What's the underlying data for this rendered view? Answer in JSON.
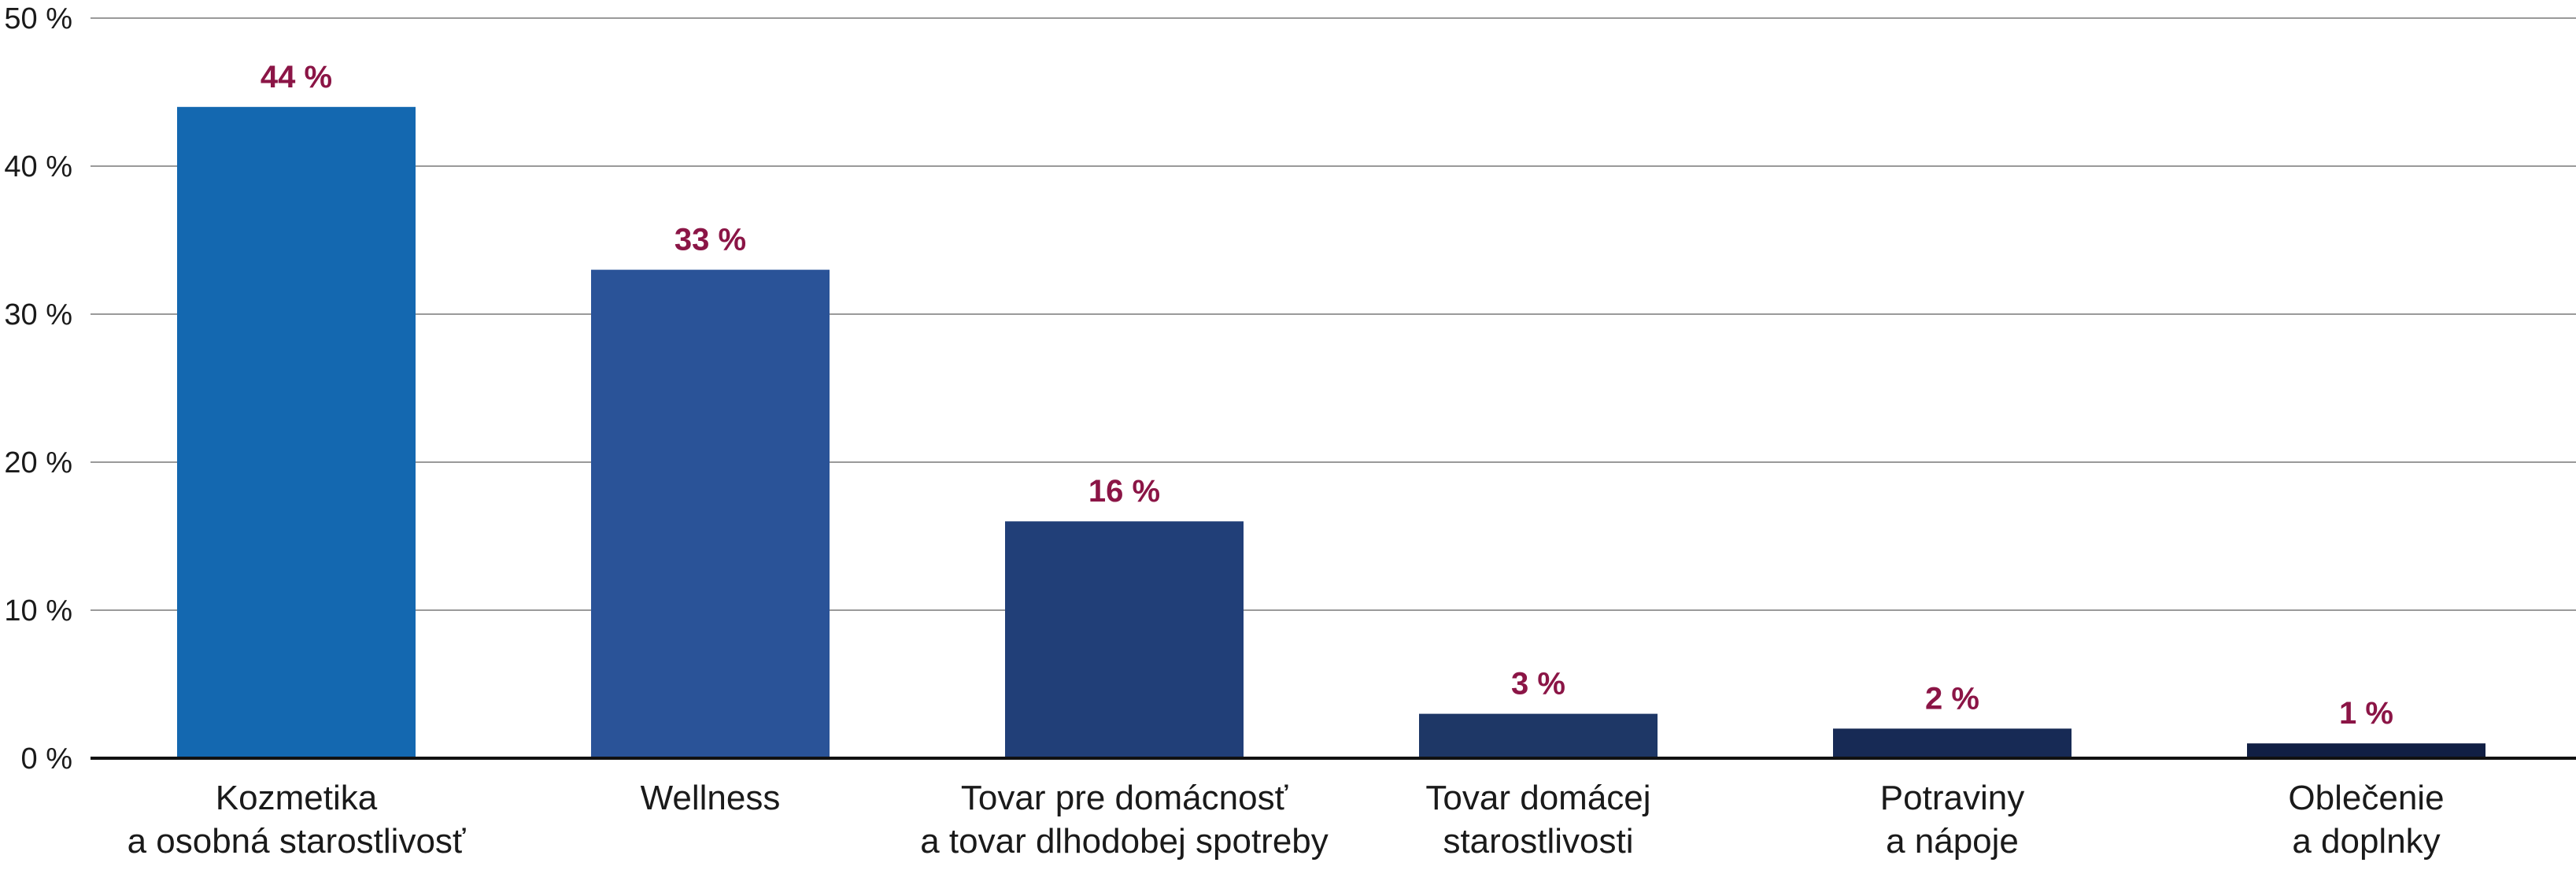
{
  "chart_data": {
    "type": "bar",
    "categories": [
      [
        "Kozmetika",
        "a osobná starostlivosť"
      ],
      [
        "Wellness"
      ],
      [
        "Tovar pre domácnosť",
        "a tovar dlhodobej spotreby"
      ],
      [
        "Tovar domácej",
        "starostlivosti"
      ],
      [
        "Potraviny",
        "a nápoje"
      ],
      [
        "Oblečenie",
        "a doplnky"
      ]
    ],
    "values": [
      44,
      33,
      16,
      3,
      2,
      1
    ],
    "data_labels": [
      "44 %",
      "33 %",
      "16 %",
      "3 %",
      "2 %",
      "1 %"
    ],
    "bar_colors": [
      "#1468B0",
      "#2A5398",
      "#213F78",
      "#1E3766",
      "#172A55",
      "#111F44"
    ],
    "data_label_color": "#8B1546",
    "ylim": [
      0,
      50
    ],
    "yticks": [
      0,
      10,
      20,
      30,
      40,
      50
    ],
    "ytick_labels": [
      "0 %",
      "10 %",
      "20 %",
      "30 %",
      "40 %",
      "50 %"
    ],
    "grid": true,
    "title": "",
    "xlabel": "",
    "ylabel": ""
  }
}
